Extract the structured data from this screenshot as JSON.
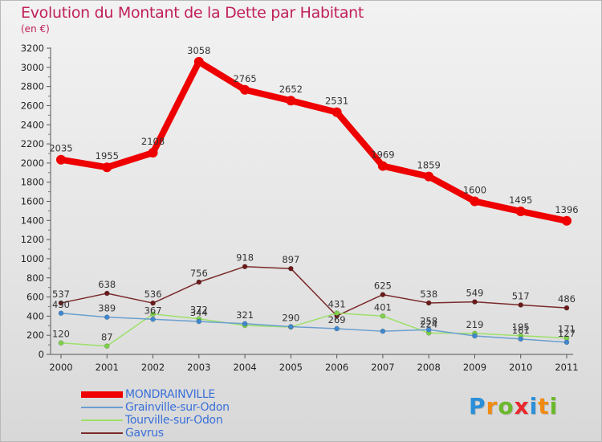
{
  "title": "Evolution du Montant de la Dette par Habitant",
  "unit": "(en €)",
  "logo": {
    "letters": [
      "P",
      "r",
      "o",
      "x",
      "i",
      "t",
      "i"
    ],
    "colors": [
      "#2a8fd8",
      "#f08a10",
      "#6cb82c",
      "#e8282c",
      "#2a8fd8",
      "#f08a10",
      "#6cb82c"
    ]
  },
  "chart_data": {
    "type": "line",
    "x": [
      "2000",
      "2001",
      "2002",
      "2003",
      "2004",
      "2005",
      "2006",
      "2007",
      "2008",
      "2009",
      "2010",
      "2011"
    ],
    "ylim": [
      0,
      3200
    ],
    "yticks": [
      0,
      200,
      400,
      600,
      800,
      1000,
      1200,
      1400,
      1600,
      1800,
      2000,
      2200,
      2400,
      2600,
      2800,
      3000,
      3200
    ],
    "grid": false,
    "legend_position": "bottom-left",
    "series": [
      {
        "name": "MONDRAINVILLE",
        "color": "#ee0000",
        "width": 8,
        "values": [
          2035,
          1955,
          2108,
          3058,
          2765,
          2652,
          2531,
          1969,
          1859,
          1600,
          1495,
          1396
        ],
        "labels": [
          "2035",
          "1955",
          "2108",
          "3058",
          "2765",
          "2652",
          "2531",
          "1969",
          "1859",
          "1600",
          "1495",
          "1396"
        ]
      },
      {
        "name": "Grainville-sur-Odon",
        "color": "#6a9fd0",
        "marker": "#3f88d0",
        "width": 1.5,
        "values": [
          430,
          389,
          367,
          344,
          321,
          290,
          269,
          242,
          258,
          193,
          161,
          127
        ],
        "labels": [
          "430",
          "389",
          "367",
          "344",
          "321",
          "290",
          "269",
          "",
          "258",
          "",
          "161",
          "127"
        ]
      },
      {
        "name": "Tourville-sur-Odon",
        "color": "#9de06a",
        "marker": "#7ed14a",
        "width": 1.5,
        "values": [
          120,
          87,
          422,
          372,
          302,
          286,
          431,
          401,
          224,
          219,
          195,
          171
        ],
        "labels": [
          "120",
          "87",
          "",
          "372",
          "",
          "",
          "431",
          "401",
          "224",
          "219",
          "195",
          "171"
        ]
      },
      {
        "name": "Gavrus",
        "color": "#7a2a2a",
        "marker": "#6a1a1a",
        "width": 1.5,
        "values": [
          537,
          638,
          536,
          756,
          918,
          897,
          403,
          625,
          538,
          549,
          517,
          486
        ],
        "labels": [
          "537",
          "638",
          "536",
          "756",
          "918",
          "897",
          "",
          "625",
          "538",
          "549",
          "517",
          "486"
        ]
      }
    ]
  }
}
